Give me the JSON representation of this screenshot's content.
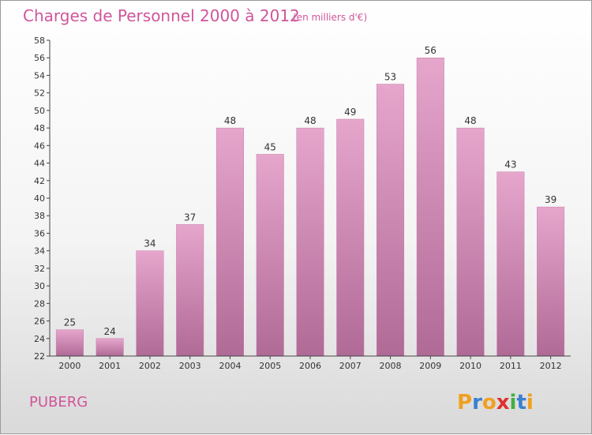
{
  "chart_data": {
    "type": "bar",
    "title": "Charges de Personnel 2000 à 2012",
    "subtitle": "(en milliers d'€)",
    "categories": [
      "2000",
      "2001",
      "2002",
      "2003",
      "2004",
      "2005",
      "2006",
      "2007",
      "2008",
      "2009",
      "2010",
      "2011",
      "2012"
    ],
    "values": [
      25,
      24,
      34,
      37,
      48,
      45,
      48,
      49,
      53,
      56,
      48,
      43,
      39
    ],
    "ylim": [
      22,
      58
    ],
    "ytick_step": 2,
    "grid": false,
    "bar_color": "#d88ab7"
  },
  "footer": {
    "commune": "PUBERG",
    "logo_letters": [
      "P",
      "r",
      "o",
      "x",
      "i",
      "t",
      "i"
    ],
    "logo_colors": [
      "#f0a020",
      "#3a7fd0",
      "#f0a020",
      "#e03030",
      "#40b040",
      "#3a7fd0",
      "#f0a020"
    ]
  }
}
